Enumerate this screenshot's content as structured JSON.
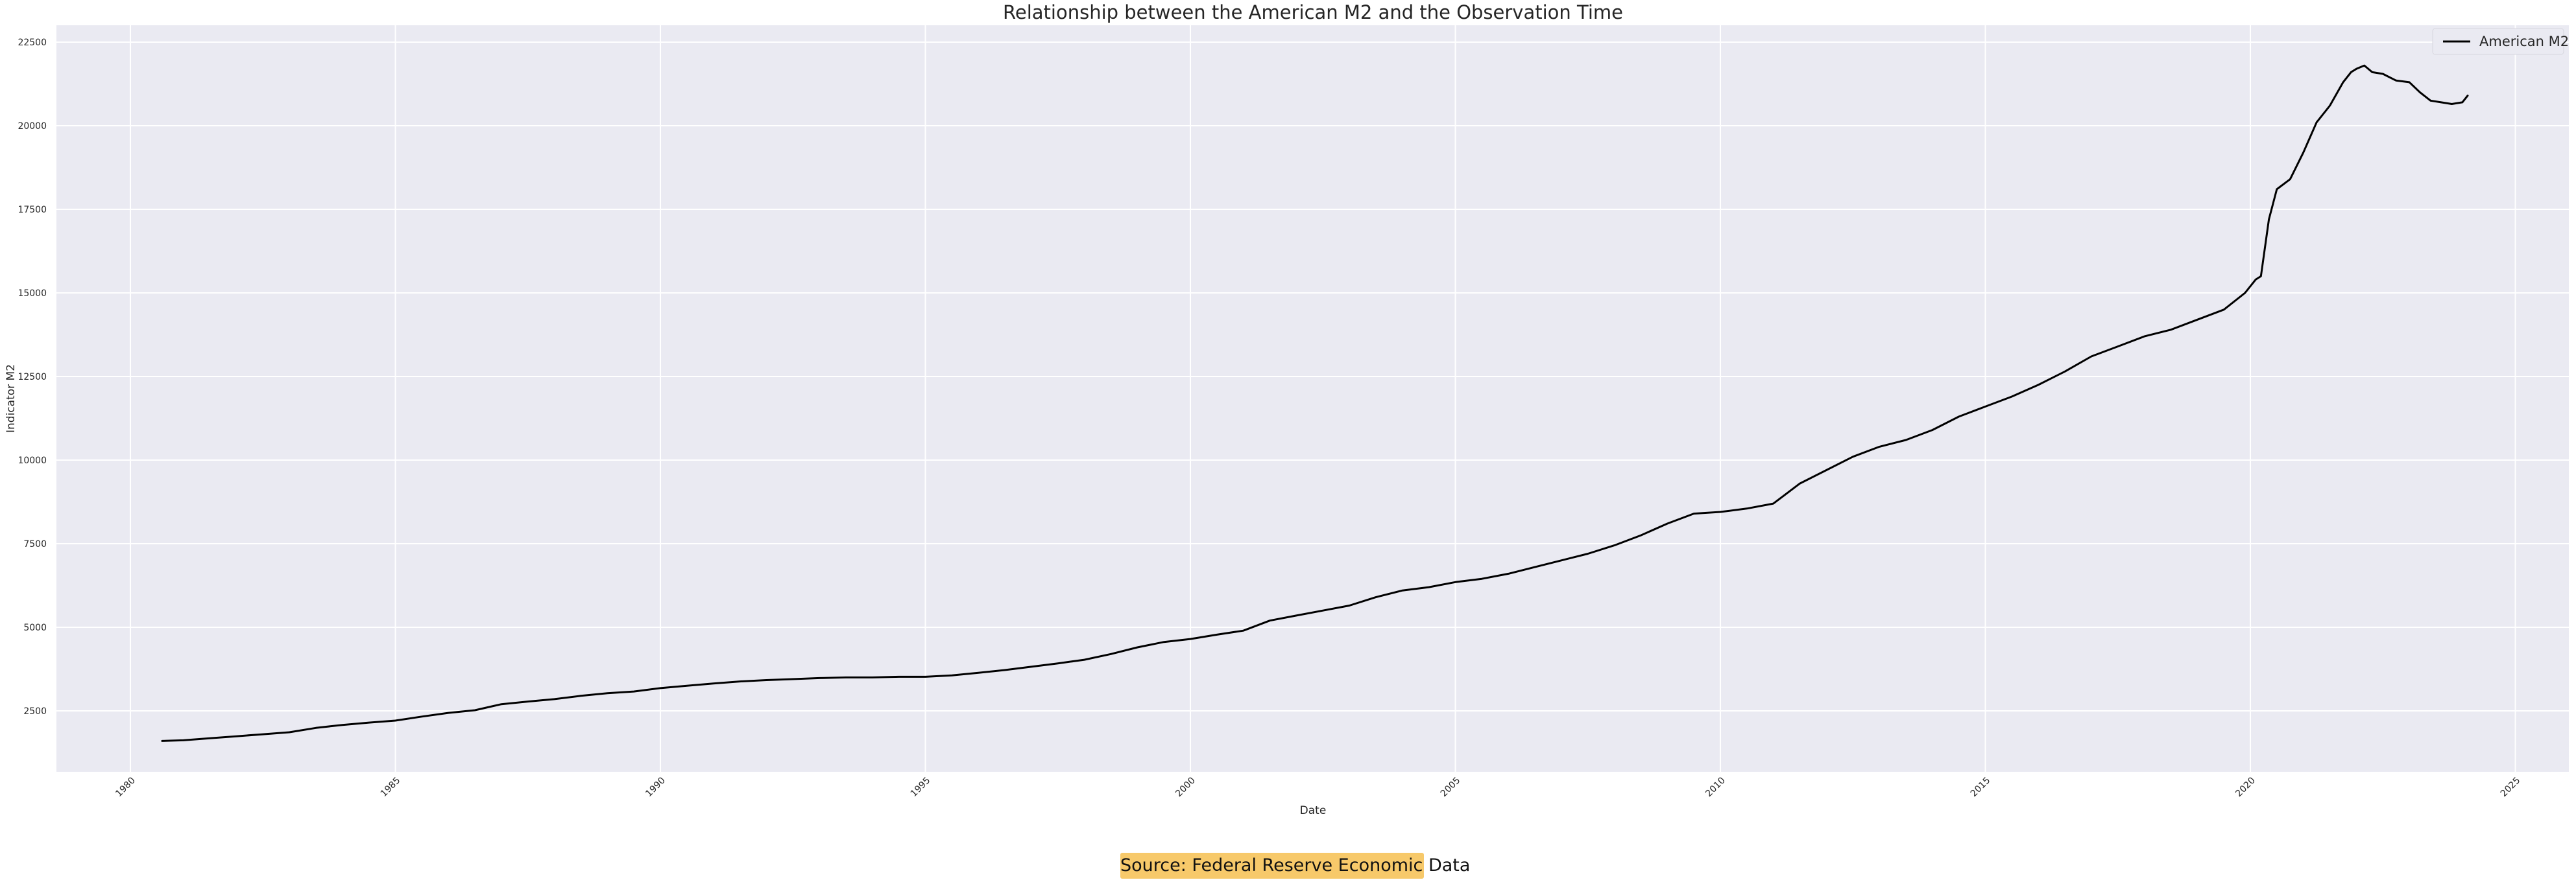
{
  "chart_data": {
    "type": "line",
    "title": "Relationship between the American M2 and the Observation Time",
    "xlabel": "Date",
    "ylabel": "Indicator M2",
    "xlim": [
      1979.15,
      2026.0
    ],
    "ylim": [
      600,
      22900
    ],
    "x_ticks": [
      1980,
      1985,
      1990,
      1995,
      2000,
      2005,
      2010,
      2015,
      2020,
      2025
    ],
    "y_ticks": [
      2500,
      5000,
      7500,
      10000,
      12500,
      15000,
      17500,
      20000,
      22500
    ],
    "grid": true,
    "legend_position": "top-right",
    "series": [
      {
        "name": "American M2",
        "color": "#000000",
        "x": [
          1980.6,
          1981.0,
          1981.5,
          1982.0,
          1982.5,
          1983.0,
          1983.5,
          1984.0,
          1984.5,
          1985.0,
          1985.5,
          1986.0,
          1986.5,
          1987.0,
          1987.5,
          1988.0,
          1988.5,
          1989.0,
          1989.5,
          1990.0,
          1990.5,
          1991.0,
          1991.5,
          1992.0,
          1992.5,
          1993.0,
          1993.5,
          1994.0,
          1994.5,
          1995.0,
          1995.5,
          1996.0,
          1996.5,
          1997.0,
          1997.5,
          1998.0,
          1998.5,
          1999.0,
          1999.5,
          2000.0,
          2000.5,
          2001.0,
          2001.5,
          2002.0,
          2002.5,
          2003.0,
          2003.5,
          2004.0,
          2004.5,
          2005.0,
          2005.5,
          2006.0,
          2006.5,
          2007.0,
          2007.5,
          2008.0,
          2008.5,
          2009.0,
          2009.5,
          2010.0,
          2010.5,
          2011.0,
          2011.5,
          2012.0,
          2012.5,
          2013.0,
          2013.5,
          2014.0,
          2014.5,
          2015.0,
          2015.5,
          2016.0,
          2016.5,
          2017.0,
          2017.5,
          2018.0,
          2018.5,
          2019.0,
          2019.5,
          2019.9,
          2020.1,
          2020.2,
          2020.35,
          2020.5,
          2020.75,
          2021.0,
          2021.25,
          2021.5,
          2021.75,
          2021.9,
          2022.0,
          2022.15,
          2022.3,
          2022.5,
          2022.75,
          2023.0,
          2023.2,
          2023.4,
          2023.6,
          2023.8,
          2024.0,
          2024.1
        ],
        "y": [
          1600,
          1620,
          1680,
          1740,
          1800,
          1860,
          1990,
          2080,
          2150,
          2210,
          2330,
          2440,
          2520,
          2700,
          2780,
          2850,
          2950,
          3030,
          3080,
          3180,
          3250,
          3320,
          3380,
          3420,
          3450,
          3480,
          3500,
          3500,
          3520,
          3520,
          3560,
          3640,
          3720,
          3820,
          3920,
          4030,
          4200,
          4400,
          4560,
          4650,
          4780,
          4900,
          5200,
          5350,
          5500,
          5650,
          5900,
          6100,
          6200,
          6350,
          6450,
          6600,
          6800,
          7000,
          7200,
          7450,
          7750,
          8100,
          8400,
          8450,
          8550,
          8700,
          9300,
          9700,
          10100,
          10400,
          10600,
          10900,
          11300,
          11600,
          11900,
          12250,
          12650,
          13100,
          13400,
          13700,
          13900,
          14200,
          14500,
          15000,
          15400,
          15500,
          17200,
          18100,
          18400,
          19200,
          20100,
          20600,
          21300,
          21600,
          21700,
          21800,
          21600,
          21550,
          21350,
          21300,
          21000,
          20750,
          20700,
          20650,
          20700,
          20900
        ]
      }
    ]
  },
  "source_note": "Source: Federal Reserve Economic Data"
}
